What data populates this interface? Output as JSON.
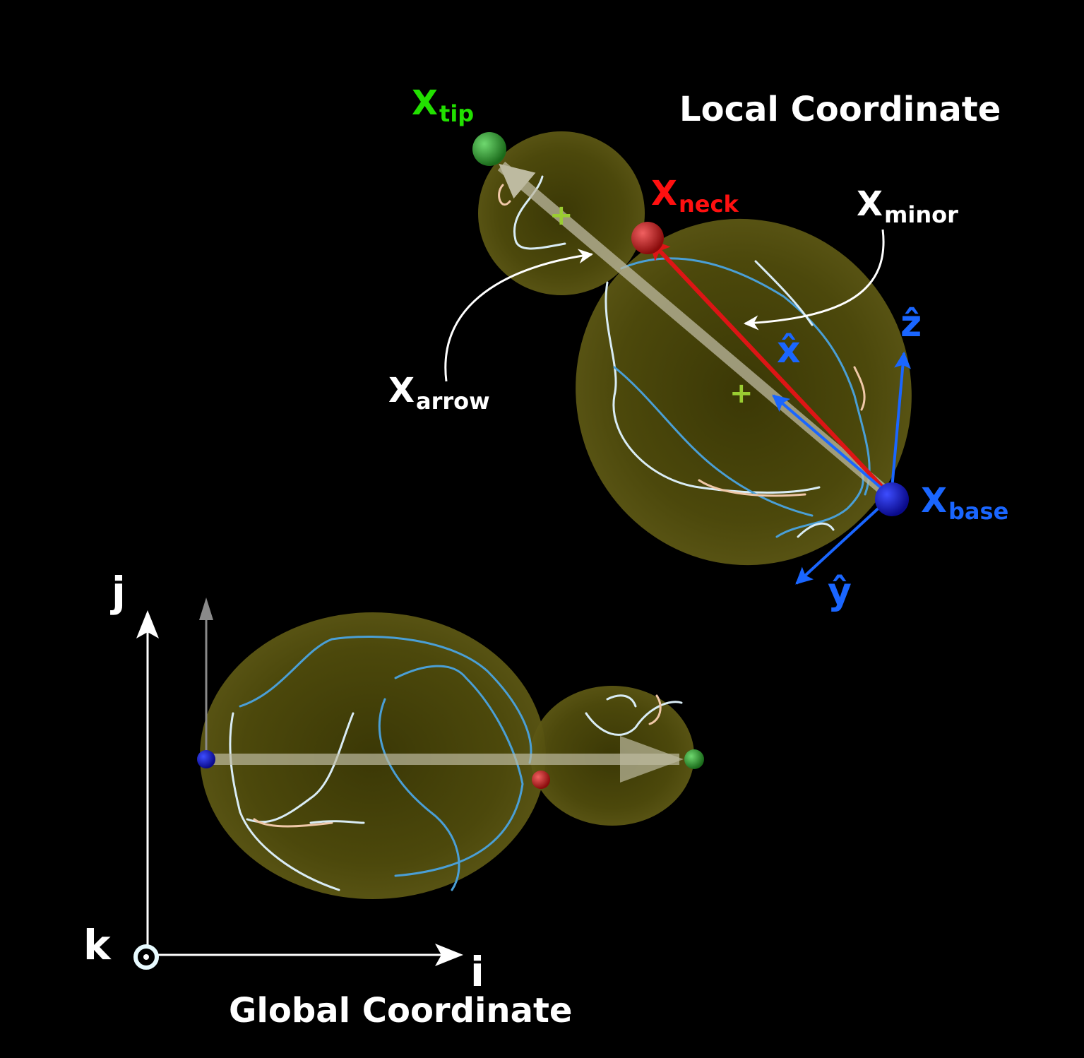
{
  "titles": {
    "local": "Local Coordinate",
    "global": "Global Coordinate"
  },
  "points": {
    "tip": {
      "main": "X",
      "sub": "tip",
      "color": "#22e000"
    },
    "neck": {
      "main": "X",
      "sub": "neck",
      "color": "#ff1010"
    },
    "base": {
      "main": "X",
      "sub": "base",
      "color": "#1a66ff"
    }
  },
  "annotations": {
    "minor": {
      "main": "X",
      "sub": "minor"
    },
    "arrow": {
      "main": "X",
      "sub": "arrow"
    }
  },
  "local_axes": {
    "x": {
      "label": "x̂"
    },
    "y": {
      "label": "ŷ"
    },
    "z": {
      "label": "ẑ"
    }
  },
  "global_axes": {
    "i": "i",
    "j": "j",
    "k": "k"
  },
  "colors": {
    "background": "#000000",
    "cell_fill": "#5a5510",
    "axis_blue": "#1a66ff",
    "neck_red": "#dd1515",
    "tip_green": "#22e000",
    "white": "#ffffff",
    "cyto_blue": "#4a9fd6"
  }
}
